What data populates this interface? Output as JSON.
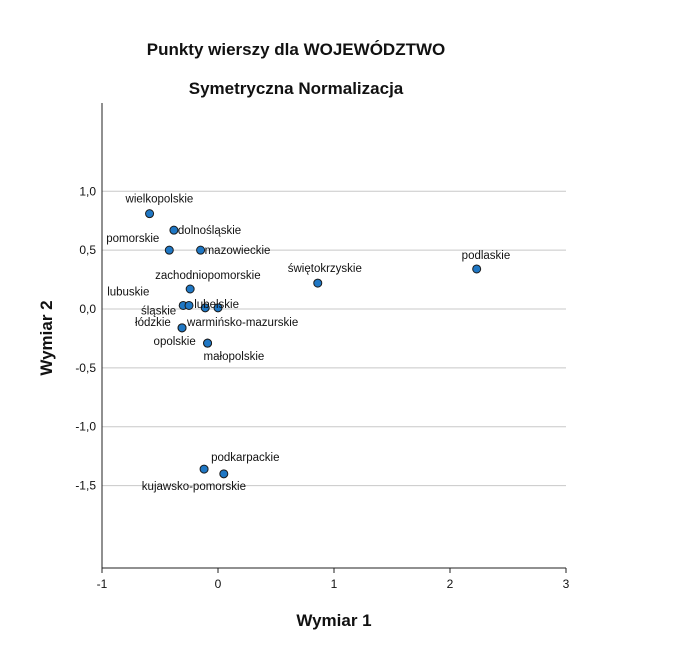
{
  "chart_data": {
    "type": "scatter",
    "title": "Punkty wierszy dla WOJEWÓDZTWO",
    "subtitle": "Symetryczna Normalizacja",
    "xlabel": "Wymiar 1",
    "ylabel": "Wymiar 2",
    "xlim": [
      -1,
      3
    ],
    "ylim": [
      -2.2,
      1.75
    ],
    "x_ticks": [
      -1,
      0,
      1,
      2,
      3
    ],
    "x_tick_labels": [
      "-1",
      "0",
      "1",
      "2",
      "3"
    ],
    "y_ticks": [
      1.0,
      0.5,
      0.0,
      -0.5,
      -1.0,
      -1.5
    ],
    "y_tick_labels": [
      "1,0",
      "0,5",
      "0,0",
      "-0,5",
      "-1,0",
      "-1,5"
    ],
    "grid": "horizontal",
    "marker_color": "#1f77c4",
    "marker_edge_color": "#1a1a1a",
    "gridline_color": "#c8c8c8",
    "points": [
      {
        "label": "wielkopolskie",
        "x": -0.59,
        "y": 0.81
      },
      {
        "label": "dolnośląskie",
        "x": -0.38,
        "y": 0.67
      },
      {
        "label": "pomorskie",
        "x": -0.42,
        "y": 0.5
      },
      {
        "label": "mazowieckie",
        "x": -0.15,
        "y": 0.5
      },
      {
        "label": "podlaskie",
        "x": 2.23,
        "y": 0.34
      },
      {
        "label": "świętokrzyskie",
        "x": 0.86,
        "y": 0.22
      },
      {
        "label": "zachodniopomorskie",
        "x": -0.24,
        "y": 0.17
      },
      {
        "label": "lubuskie",
        "x": -0.3,
        "y": 0.03
      },
      {
        "label": "śląskie",
        "x": -0.25,
        "y": 0.03
      },
      {
        "label": "lubelskie",
        "x": -0.11,
        "y": 0.01
      },
      {
        "label": "",
        "x": 0.0,
        "y": 0.01
      },
      {
        "label": "łódzkie",
        "x": -0.31,
        "y": -0.16
      },
      {
        "label": "warmińsko-mazurskie",
        "x": -0.31,
        "y": -0.16
      },
      {
        "label": "opolskie",
        "x": -0.09,
        "y": -0.29
      },
      {
        "label": "małopolskie",
        "x": -0.09,
        "y": -0.29
      },
      {
        "label": "podkarpackie",
        "x": -0.12,
        "y": -1.36
      },
      {
        "label": "kujawsko-pomorskie",
        "x": 0.05,
        "y": -1.4
      }
    ]
  }
}
